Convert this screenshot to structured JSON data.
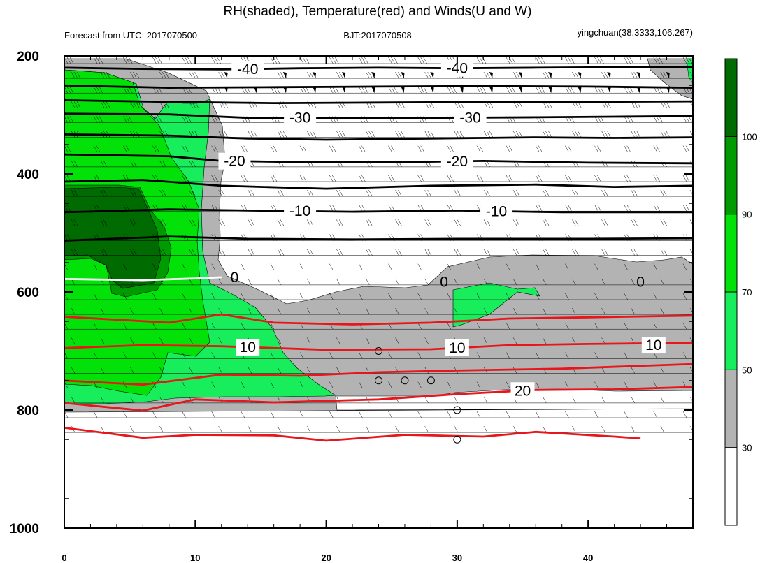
{
  "chart_data": {
    "type": "contour",
    "title": "RH(shaded), Temperature(red) and Winds(U and W)",
    "subtitle_left": "Forecast from UTC: 2017070500",
    "subtitle_center": "BJT:2017070508",
    "subtitle_right": "yingchuan(38.3333,106.267)",
    "x_range": [
      0,
      48
    ],
    "x_ticks": [
      "0",
      "10",
      "20",
      "30",
      "40"
    ],
    "y_range": [
      200,
      1000
    ],
    "y_ticks": [
      "200",
      "400",
      "600",
      "800",
      "1000"
    ],
    "colorbar": {
      "labels": [
        "30",
        "50",
        "70",
        "90",
        "100"
      ],
      "levels": [
        {
          "from": 0,
          "to": 30,
          "color": "#ffffff"
        },
        {
          "from": 30,
          "to": 50,
          "color": "#b3b3b3"
        },
        {
          "from": 50,
          "to": 70,
          "color": "#18ee5c"
        },
        {
          "from": 70,
          "to": 90,
          "color": "#02e208"
        },
        {
          "from": 90,
          "to": 100,
          "color": "#009b00"
        },
        {
          "from": 100,
          "to": 110,
          "color": "#006b00"
        }
      ]
    },
    "temperature_contours": [
      {
        "value": -40,
        "label": "-40",
        "color": "#000000",
        "points": [
          [
            0,
            220
          ],
          [
            6,
            222
          ],
          [
            12,
            223
          ],
          [
            18,
            221
          ],
          [
            24,
            220
          ],
          [
            30,
            221
          ],
          [
            36,
            220
          ],
          [
            42,
            219
          ],
          [
            48,
            219
          ]
        ]
      },
      {
        "value": -40,
        "label": "",
        "color": "#000000",
        "points": [
          [
            0,
            250
          ],
          [
            8,
            254
          ],
          [
            16,
            253
          ],
          [
            24,
            252
          ],
          [
            32,
            251
          ],
          [
            40,
            252
          ],
          [
            48,
            254
          ]
        ]
      },
      {
        "value": -40,
        "label": "",
        "color": "#000000",
        "points": [
          [
            0,
            275
          ],
          [
            8,
            278
          ],
          [
            16,
            280
          ],
          [
            24,
            279
          ],
          [
            32,
            278
          ],
          [
            40,
            278
          ],
          [
            48,
            277
          ]
        ]
      },
      {
        "value": -30,
        "label": "-30",
        "color": "#000000",
        "points": [
          [
            0,
            298
          ],
          [
            8,
            299
          ],
          [
            14,
            305
          ],
          [
            20,
            305
          ],
          [
            28,
            305
          ],
          [
            36,
            304
          ],
          [
            42,
            303
          ],
          [
            48,
            302
          ]
        ]
      },
      {
        "value": -30,
        "label": "",
        "color": "#000000",
        "points": [
          [
            0,
            333
          ],
          [
            8,
            335
          ],
          [
            14,
            340
          ],
          [
            20,
            342
          ],
          [
            28,
            340
          ],
          [
            36,
            338
          ],
          [
            42,
            339
          ],
          [
            48,
            338
          ]
        ]
      },
      {
        "value": -20,
        "label": "-20",
        "color": "#000000",
        "points": [
          [
            0,
            367
          ],
          [
            8,
            370
          ],
          [
            12,
            378
          ],
          [
            18,
            380
          ],
          [
            26,
            380
          ],
          [
            32,
            378
          ],
          [
            40,
            381
          ],
          [
            48,
            382
          ]
        ]
      },
      {
        "value": -20,
        "label": "",
        "color": "#000000",
        "points": [
          [
            0,
            413
          ],
          [
            6,
            410
          ],
          [
            12,
            420
          ],
          [
            20,
            425
          ],
          [
            28,
            420
          ],
          [
            36,
            418
          ],
          [
            42,
            422
          ],
          [
            48,
            420
          ]
        ]
      },
      {
        "value": -10,
        "label": "-10",
        "color": "#000000",
        "points": [
          [
            0,
            465
          ],
          [
            8,
            460
          ],
          [
            14,
            462
          ],
          [
            22,
            464
          ],
          [
            30,
            462
          ],
          [
            38,
            465
          ],
          [
            48,
            465
          ]
        ]
      },
      {
        "value": -10,
        "label": "",
        "color": "#000000",
        "points": [
          [
            0,
            513
          ],
          [
            8,
            506
          ],
          [
            14,
            510
          ],
          [
            22,
            511
          ],
          [
            30,
            510
          ],
          [
            40,
            510
          ],
          [
            48,
            509
          ]
        ]
      },
      {
        "value": 0,
        "label": "0",
        "color": "#ffffff",
        "points": [
          [
            0,
            578
          ],
          [
            6,
            580
          ],
          [
            10,
            577
          ],
          [
            12,
            575
          ]
        ]
      },
      {
        "value": 10,
        "label": "",
        "color": "#e8161b",
        "points": [
          [
            0,
            642
          ],
          [
            8,
            652
          ],
          [
            12,
            638
          ],
          [
            16,
            652
          ],
          [
            22,
            655
          ],
          [
            28,
            652
          ],
          [
            34,
            645
          ],
          [
            40,
            643
          ],
          [
            48,
            640
          ]
        ]
      },
      {
        "value": 10,
        "label": "10",
        "color": "#e8161b",
        "points": [
          [
            0,
            695
          ],
          [
            6,
            690
          ],
          [
            12,
            692
          ],
          [
            20,
            698
          ],
          [
            28,
            697
          ],
          [
            34,
            690
          ],
          [
            40,
            688
          ],
          [
            48,
            686
          ]
        ]
      },
      {
        "value": 10,
        "label": "",
        "color": "#e8161b",
        "points": [
          [
            0,
            750
          ],
          [
            6,
            757
          ],
          [
            12,
            740
          ],
          [
            18,
            742
          ],
          [
            24,
            736
          ],
          [
            30,
            733
          ],
          [
            38,
            730
          ],
          [
            48,
            722
          ]
        ]
      },
      {
        "value": 20,
        "label": "20",
        "color": "#e8161b",
        "points": [
          [
            0,
            788
          ],
          [
            6,
            801
          ],
          [
            10,
            782
          ],
          [
            16,
            787
          ],
          [
            24,
            782
          ],
          [
            30,
            773
          ],
          [
            36,
            766
          ],
          [
            42,
            765
          ],
          [
            48,
            761
          ]
        ]
      },
      {
        "value": 20,
        "label": "",
        "color": "#e8161b",
        "points": [
          [
            0,
            830
          ],
          [
            6,
            847
          ],
          [
            10,
            842
          ],
          [
            16,
            843
          ],
          [
            20,
            852
          ],
          [
            26,
            842
          ],
          [
            32,
            845
          ],
          [
            36,
            837
          ],
          [
            42,
            845
          ],
          [
            44,
            848
          ]
        ]
      }
    ],
    "isotherm_labels": [
      "-40",
      "-40",
      "-30",
      "-30",
      "-20",
      "-20",
      "-10",
      "-10",
      "0",
      "0",
      "0",
      "10",
      "10",
      "10",
      "20"
    ],
    "calm_wind_points": [
      [
        24,
        700
      ],
      [
        24,
        750
      ],
      [
        26,
        750
      ],
      [
        28,
        750
      ],
      [
        30,
        800
      ],
      [
        30,
        850
      ]
    ]
  }
}
